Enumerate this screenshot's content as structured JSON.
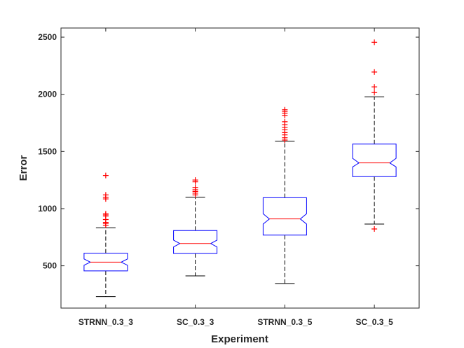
{
  "chart_data": {
    "type": "boxplot",
    "title": "",
    "xlabel": "Experiment",
    "ylabel": "Error",
    "ylim": [
      130,
      2580
    ],
    "yticks": [
      500,
      1000,
      1500,
      2000,
      2500
    ],
    "notched": true,
    "grid": false,
    "categories": [
      "STRNN_0.3_3",
      "SC_0.3_3",
      "STRNN_0.3_5",
      "SC_0.3_5"
    ],
    "boxes": [
      {
        "name": "STRNN_0.3_3",
        "whisker_low": 230,
        "q1": 455,
        "median": 532,
        "q3": 610,
        "whisker_high": 832,
        "notch_low": 505,
        "notch_high": 560,
        "outliers": [
          855,
          870,
          880,
          905,
          935,
          945,
          955,
          1085,
          1100,
          1120,
          1290
        ]
      },
      {
        "name": "SC_0.3_3",
        "whisker_low": 412,
        "q1": 608,
        "median": 695,
        "q3": 808,
        "whisker_high": 1100,
        "notch_low": 665,
        "notch_high": 725,
        "outliers": [
          1120,
          1135,
          1150,
          1165,
          1185,
          1235,
          1250
        ]
      },
      {
        "name": "STRNN_0.3_5",
        "whisker_low": 345,
        "q1": 768,
        "median": 910,
        "q3": 1095,
        "whisker_high": 1590,
        "notch_low": 865,
        "notch_high": 955,
        "outliers": [
          1600,
          1620,
          1645,
          1665,
          1690,
          1710,
          1735,
          1760,
          1815,
          1835,
          1850,
          1865
        ]
      },
      {
        "name": "SC_0.3_5",
        "whisker_low": 865,
        "q1": 1280,
        "median": 1400,
        "q3": 1565,
        "whisker_high": 1978,
        "notch_low": 1365,
        "notch_high": 1440,
        "outliers": [
          822,
          2015,
          2065,
          2195,
          2455
        ]
      }
    ],
    "colors": {
      "box": "#0000ff",
      "median": "#ff0000",
      "whisker": "#000000",
      "outlier": "#ff0000",
      "axis": "#262626"
    }
  }
}
